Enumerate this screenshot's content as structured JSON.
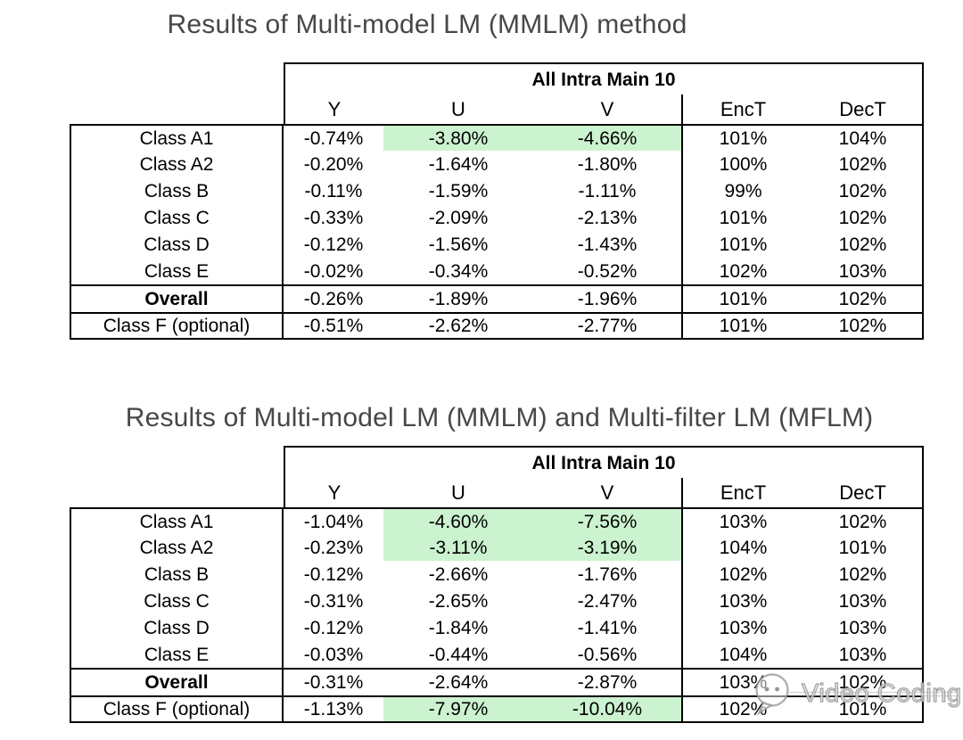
{
  "colors": {
    "highlight_green": "#ccf3d0",
    "title_gray": "#474747",
    "table_border": "#000000",
    "background": "#ffffff"
  },
  "tables": [
    {
      "title": "Results of Multi-model LM (MMLM) method",
      "group_header": "All Intra Main 10",
      "columns": [
        "Y",
        "U",
        "V",
        "EncT",
        "DecT"
      ],
      "rows": [
        {
          "label": "Class A1",
          "bold": false,
          "values": [
            "-0.74%",
            "-3.80%",
            "-4.66%",
            "101%",
            "104%"
          ],
          "highlights": [
            false,
            true,
            true,
            false,
            false
          ]
        },
        {
          "label": "Class A2",
          "bold": false,
          "values": [
            "-0.20%",
            "-1.64%",
            "-1.80%",
            "100%",
            "102%"
          ],
          "highlights": [
            false,
            false,
            false,
            false,
            false
          ]
        },
        {
          "label": "Class B",
          "bold": false,
          "values": [
            "-0.11%",
            "-1.59%",
            "-1.11%",
            "99%",
            "102%"
          ],
          "highlights": [
            false,
            false,
            false,
            false,
            false
          ]
        },
        {
          "label": "Class C",
          "bold": false,
          "values": [
            "-0.33%",
            "-2.09%",
            "-2.13%",
            "101%",
            "102%"
          ],
          "highlights": [
            false,
            false,
            false,
            false,
            false
          ]
        },
        {
          "label": "Class D",
          "bold": false,
          "values": [
            "-0.12%",
            "-1.56%",
            "-1.43%",
            "101%",
            "102%"
          ],
          "highlights": [
            false,
            false,
            false,
            false,
            false
          ]
        },
        {
          "label": "Class E",
          "bold": false,
          "values": [
            "-0.02%",
            "-0.34%",
            "-0.52%",
            "102%",
            "103%"
          ],
          "highlights": [
            false,
            false,
            false,
            false,
            false
          ]
        },
        {
          "label": "Overall",
          "bold": true,
          "values": [
            "-0.26%",
            "-1.89%",
            "-1.96%",
            "101%",
            "102%"
          ],
          "highlights": [
            false,
            false,
            false,
            false,
            false
          ]
        },
        {
          "label": "Class F (optional)",
          "bold": false,
          "values": [
            "-0.51%",
            "-2.62%",
            "-2.77%",
            "101%",
            "102%"
          ],
          "highlights": [
            false,
            false,
            false,
            false,
            false
          ]
        }
      ]
    },
    {
      "title": "Results of Multi-model LM (MMLM) and Multi-filter LM (MFLM)",
      "group_header": "All Intra Main 10",
      "columns": [
        "Y",
        "U",
        "V",
        "EncT",
        "DecT"
      ],
      "rows": [
        {
          "label": "Class A1",
          "bold": false,
          "values": [
            "-1.04%",
            "-4.60%",
            "-7.56%",
            "103%",
            "102%"
          ],
          "highlights": [
            false,
            true,
            true,
            false,
            false
          ]
        },
        {
          "label": "Class A2",
          "bold": false,
          "values": [
            "-0.23%",
            "-3.11%",
            "-3.19%",
            "104%",
            "101%"
          ],
          "highlights": [
            false,
            true,
            true,
            false,
            false
          ]
        },
        {
          "label": "Class B",
          "bold": false,
          "values": [
            "-0.12%",
            "-2.66%",
            "-1.76%",
            "102%",
            "102%"
          ],
          "highlights": [
            false,
            false,
            false,
            false,
            false
          ]
        },
        {
          "label": "Class C",
          "bold": false,
          "values": [
            "-0.31%",
            "-2.65%",
            "-2.47%",
            "103%",
            "103%"
          ],
          "highlights": [
            false,
            false,
            false,
            false,
            false
          ]
        },
        {
          "label": "Class D",
          "bold": false,
          "values": [
            "-0.12%",
            "-1.84%",
            "-1.41%",
            "103%",
            "103%"
          ],
          "highlights": [
            false,
            false,
            false,
            false,
            false
          ]
        },
        {
          "label": "Class E",
          "bold": false,
          "values": [
            "-0.03%",
            "-0.44%",
            "-0.56%",
            "104%",
            "103%"
          ],
          "highlights": [
            false,
            false,
            false,
            false,
            false
          ]
        },
        {
          "label": "Overall",
          "bold": true,
          "values": [
            "-0.31%",
            "-2.64%",
            "-2.87%",
            "103%",
            "102%"
          ],
          "highlights": [
            false,
            false,
            false,
            false,
            false
          ]
        },
        {
          "label": "Class F (optional)",
          "bold": false,
          "values": [
            "-1.13%",
            "-7.97%",
            "-10.04%",
            "102%",
            "101%"
          ],
          "highlights": [
            false,
            true,
            true,
            false,
            false
          ]
        }
      ]
    }
  ],
  "watermark": {
    "label": "Video Coding",
    "icon": "wechat-chat-bubble-icon"
  }
}
